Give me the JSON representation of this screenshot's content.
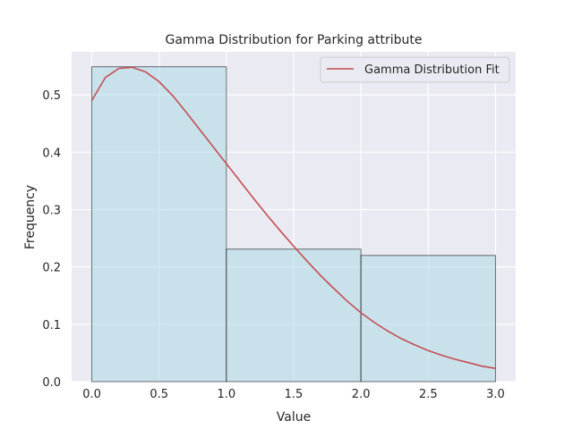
{
  "chart_data": {
    "type": "bar",
    "title": "Gamma Distribution for Parking attribute",
    "xlabel": "Value",
    "ylabel": "Frequency",
    "xlim": [
      -0.15,
      3.15
    ],
    "ylim": [
      0,
      0.575
    ],
    "x_ticks": [
      "0.0",
      "0.5",
      "1.0",
      "1.5",
      "2.0",
      "2.5",
      "3.0"
    ],
    "y_ticks": [
      "0.0",
      "0.1",
      "0.2",
      "0.3",
      "0.4",
      "0.5"
    ],
    "grid": true,
    "legend_position": "upper-right",
    "histogram": {
      "bins": [
        {
          "x0": 0,
          "x1": 1,
          "value": 0.549
        },
        {
          "x0": 1,
          "x1": 2,
          "value": 0.231
        },
        {
          "x0": 2,
          "x1": 3,
          "value": 0.22
        }
      ],
      "color": "#add8e6"
    },
    "series": [
      {
        "name": "Gamma Distribution Fit",
        "type": "line",
        "color": "#c44e52",
        "x": [
          0,
          0.1,
          0.2,
          0.3,
          0.4,
          0.5,
          0.6,
          0.7,
          0.8,
          0.9,
          1.0,
          1.1,
          1.2,
          1.3,
          1.4,
          1.5,
          1.6,
          1.7,
          1.8,
          1.9,
          2.0,
          2.1,
          2.2,
          2.3,
          2.4,
          2.5,
          2.6,
          2.7,
          2.8,
          2.9,
          3.0
        ],
        "y": [
          0.49,
          0.53,
          0.546,
          0.548,
          0.54,
          0.523,
          0.499,
          0.47,
          0.44,
          0.41,
          0.38,
          0.35,
          0.32,
          0.291,
          0.263,
          0.236,
          0.21,
          0.185,
          0.162,
          0.14,
          0.12,
          0.103,
          0.088,
          0.075,
          0.064,
          0.054,
          0.046,
          0.039,
          0.033,
          0.027,
          0.023
        ]
      }
    ]
  }
}
